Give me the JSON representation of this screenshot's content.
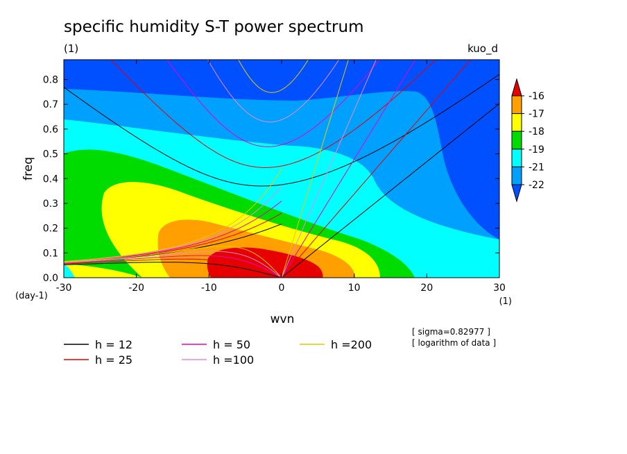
{
  "chart_data": {
    "type": "heatmap",
    "title": "specific humidity S-T power spectrum",
    "subtitle_left": "(1)",
    "subtitle_right": "kuo_d",
    "xlabel": "wvn",
    "ylabel": "freq",
    "x_unit": "(1)",
    "y_unit": "(day-1)",
    "xlim": [
      -30,
      30
    ],
    "ylim": [
      0,
      0.88
    ],
    "xticks": [
      -30,
      -20,
      -10,
      0,
      10,
      20,
      30
    ],
    "xtick_labels": [
      "-30",
      "-20",
      "-10",
      "0",
      "10",
      "20",
      "30"
    ],
    "yticks": [
      0,
      0.1,
      0.2,
      0.3,
      0.4,
      0.5,
      0.6,
      0.7,
      0.8
    ],
    "ytick_labels": [
      "0.0",
      "0.1",
      "0.2",
      "0.3",
      "0.4",
      "0.5",
      "0.6",
      "0.7",
      "0.8"
    ],
    "colorbar": {
      "labels": [
        "-16",
        "-17",
        "-18",
        "-19",
        "-21",
        "-22"
      ],
      "colors": [
        "#e60000",
        "#ff9f00",
        "#ffff00",
        "#00dc00",
        "#00ffff",
        "#00a0ff",
        "#0050ff"
      ]
    },
    "notes": [
      "[ sigma=0.82977 ]",
      "[ logarithm of data ]"
    ],
    "dispersion_curves": [
      {
        "name": "h = 12",
        "equivalent_depth": 12,
        "color": "#000000"
      },
      {
        "name": "h = 25",
        "equivalent_depth": 25,
        "color": "#e60000"
      },
      {
        "name": "h = 50",
        "equivalent_depth": 50,
        "color": "#e600c8"
      },
      {
        "name": "h =100",
        "equivalent_depth": 100,
        "color": "#e68cdc"
      },
      {
        "name": "h =200",
        "equivalent_depth": 200,
        "color": "#e6c800"
      }
    ]
  }
}
